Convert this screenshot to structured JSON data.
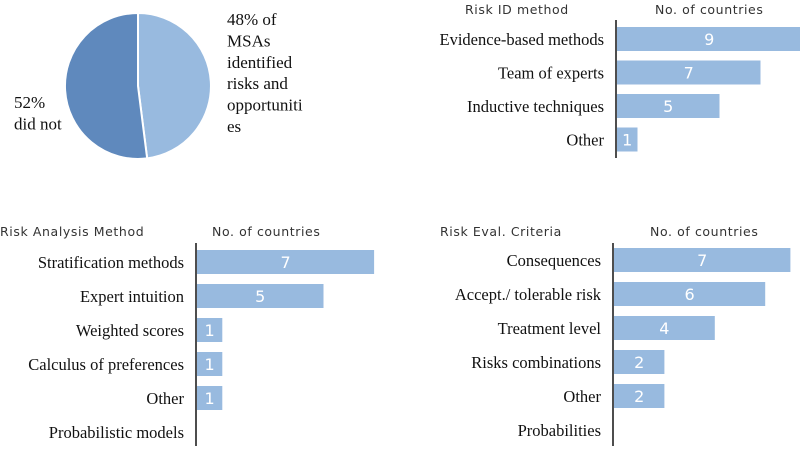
{
  "colors": {
    "bar": "#98badf",
    "pie_dark": "#5f89bd",
    "pie_light": "#98badf",
    "axis": "#222222",
    "bar_text": "#ffffff"
  },
  "chart_data": [
    {
      "type": "pie",
      "slices": [
        {
          "label": "48% of MSAs identified risks and opportunities",
          "value": 48
        },
        {
          "label": "52% did not",
          "value": 52
        }
      ]
    },
    {
      "type": "bar",
      "orientation": "horizontal",
      "title": "Risk ID method",
      "value_header": "No. of countries",
      "categories": [
        "Evidence-based methods",
        "Team of experts",
        "Inductive techniques",
        "Other"
      ],
      "values": [
        9,
        7,
        5,
        1
      ]
    },
    {
      "type": "bar",
      "orientation": "horizontal",
      "title": "Risk Analysis Method",
      "value_header": "No. of countries",
      "categories": [
        "Stratification methods",
        "Expert intuition",
        "Weighted scores",
        "Calculus of preferences",
        "Other",
        "Probabilistic models"
      ],
      "values": [
        7,
        5,
        1,
        1,
        1,
        0
      ]
    },
    {
      "type": "bar",
      "orientation": "horizontal",
      "title": "Risk Eval. Criteria",
      "value_header": "No. of countries",
      "categories": [
        "Consequences",
        "Accept./ tolerable risk",
        "Treatment level",
        "Risks combinations",
        "Other",
        "Probabilities"
      ],
      "values": [
        7,
        6,
        4,
        2,
        2,
        0
      ]
    }
  ]
}
